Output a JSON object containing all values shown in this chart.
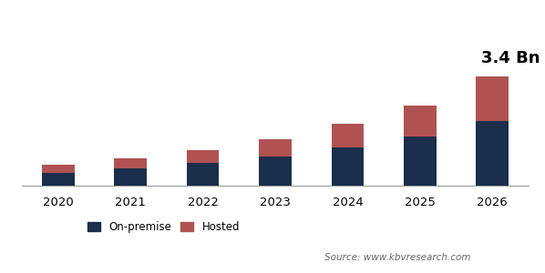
{
  "years": [
    "2020",
    "2021",
    "2022",
    "2023",
    "2024",
    "2025",
    "2026"
  ],
  "on_premise": [
    0.28,
    0.38,
    0.5,
    0.65,
    0.85,
    1.08,
    1.42
  ],
  "hosted": [
    0.18,
    0.22,
    0.28,
    0.38,
    0.52,
    0.68,
    0.98
  ],
  "on_premise_color": "#1b2e4b",
  "hosted_color": "#b05252",
  "annotation_text": "3.4 Bn",
  "annotation_fontsize": 13,
  "legend_labels": [
    "On-premise",
    "Hosted"
  ],
  "source_text": "Source: www.kbvresearch.com",
  "background_color": "#ffffff",
  "bar_width": 0.45,
  "ylim": [
    0,
    3.0
  ]
}
